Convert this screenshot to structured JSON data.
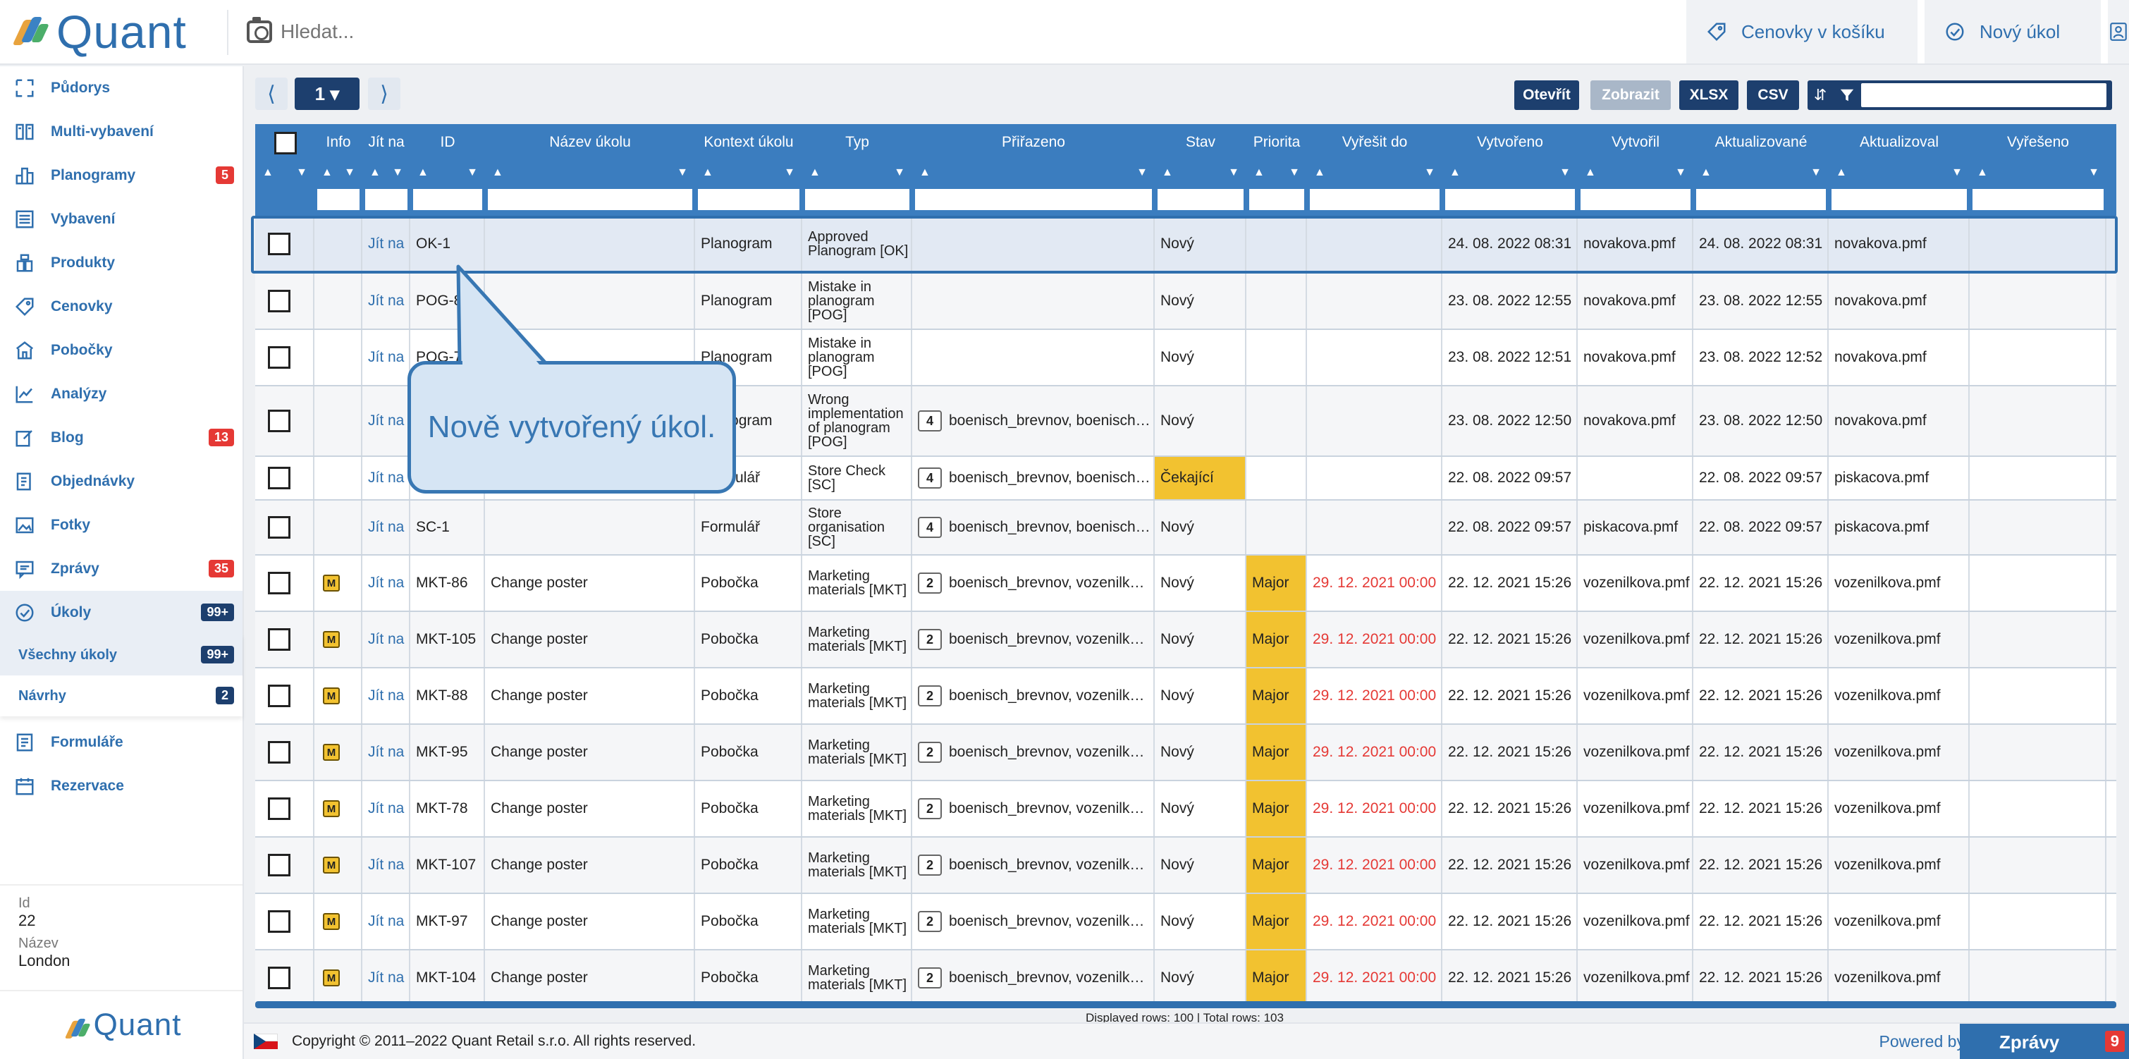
{
  "app": {
    "name": "Quant"
  },
  "search": {
    "placeholder": "Hledat..."
  },
  "topbar": {
    "cart_label": "Cenovky v košíku",
    "new_task_label": "Nový úkol"
  },
  "sidebar": {
    "items": [
      {
        "label": "Půdorys",
        "icon": "floorplan-icon"
      },
      {
        "label": "Multi-vybavení",
        "icon": "book-icon"
      },
      {
        "label": "Planogramy",
        "icon": "shelves-icon",
        "badge": "5"
      },
      {
        "label": "Vybavení",
        "icon": "fixture-icon"
      },
      {
        "label": "Produkty",
        "icon": "products-icon"
      },
      {
        "label": "Cenovky",
        "icon": "tag-icon"
      },
      {
        "label": "Pobočky",
        "icon": "store-icon"
      },
      {
        "label": "Analýzy",
        "icon": "chart-icon"
      },
      {
        "label": "Blog",
        "icon": "edit-icon",
        "badge": "13"
      },
      {
        "label": "Objednávky",
        "icon": "order-icon"
      },
      {
        "label": "Fotky",
        "icon": "photo-icon"
      },
      {
        "label": "Zprávy",
        "icon": "message-icon",
        "badge": "35"
      },
      {
        "label": "Úkoly",
        "icon": "check-icon",
        "badge": "99+"
      }
    ],
    "subitems": [
      {
        "label": "Všechny úkoly",
        "badge": "99+"
      },
      {
        "label": "Návrhy",
        "badge": "2"
      }
    ],
    "items2": [
      {
        "label": "Formuláře",
        "icon": "form-icon"
      },
      {
        "label": "Rezervace",
        "icon": "calendar-icon"
      }
    ],
    "info": {
      "id_label": "Id",
      "id_value": "22",
      "name_label": "Název",
      "name_value": "London"
    }
  },
  "toolbar": {
    "page": "1 ▾",
    "open": "Otevřít",
    "show": "Zobrazit",
    "xlsx": "XLSX",
    "csv": "CSV"
  },
  "table": {
    "headers": [
      "Info",
      "Jít na",
      "ID",
      "Název úkolu",
      "Kontext úkolu",
      "Typ",
      "Přiřazeno",
      "Stav",
      "Priorita",
      "Vyřešit do",
      "Vytvořeno",
      "Vytvořil",
      "Aktualizované",
      "Aktualizoval",
      "Vyřešeno"
    ],
    "rows": [
      {
        "info": "",
        "goto": "Jít na",
        "id": "OK-1",
        "name": "",
        "context": "Planogram",
        "type": "Approved Planogram [OK]",
        "count": "",
        "assigned": "",
        "state": "Nový",
        "priority": "",
        "due": "",
        "created": "24. 08. 2022 08:31",
        "creator": "novakova.pmf",
        "updated": "24. 08. 2022 08:31",
        "updater": "novakova.pmf",
        "resolved": ""
      },
      {
        "info": "",
        "goto": "Jít na",
        "id": "POG-8",
        "name": "",
        "context": "Planogram",
        "type": "Mistake in planogram [POG]",
        "count": "",
        "assigned": "",
        "state": "Nový",
        "priority": "",
        "due": "",
        "created": "23. 08. 2022 12:55",
        "creator": "novakova.pmf",
        "updated": "23. 08. 2022 12:55",
        "updater": "novakova.pmf",
        "resolved": ""
      },
      {
        "info": "",
        "goto": "Jít na",
        "id": "POG-7",
        "name": "",
        "context": "Planogram",
        "type": "Mistake in planogram [POG]",
        "count": "",
        "assigned": "",
        "state": "Nový",
        "priority": "",
        "due": "",
        "created": "23. 08. 2022 12:51",
        "creator": "novakova.pmf",
        "updated": "23. 08. 2022 12:52",
        "updater": "novakova.pmf",
        "resolved": ""
      },
      {
        "info": "",
        "goto": "Jít na",
        "id": "",
        "name": "",
        "context": "Planogram",
        "type": "Wrong implementation of planogram [POG]",
        "count": "4",
        "assigned": "boenisch_brevnov, boenisch…",
        "state": "Nový",
        "priority": "",
        "due": "",
        "created": "23. 08. 2022 12:50",
        "creator": "novakova.pmf",
        "updated": "23. 08. 2022 12:50",
        "updater": "novakova.pmf",
        "resolved": ""
      },
      {
        "info": "",
        "goto": "Jít na",
        "id": "",
        "name": "",
        "context": "Formulář",
        "type": "Store Check [SC]",
        "count": "4",
        "assigned": "boenisch_brevnov, boenisch…",
        "state": "Čekající",
        "priority": "",
        "due": "",
        "created": "22. 08. 2022 09:57",
        "creator": "",
        "updated": "22. 08. 2022 09:57",
        "updater": "piskacova.pmf",
        "resolved": ""
      },
      {
        "info": "",
        "goto": "Jít na",
        "id": "SC-1",
        "name": "",
        "context": "Formulář",
        "type": "Store organisation [SC]",
        "count": "4",
        "assigned": "boenisch_brevnov, boenisch…",
        "state": "Nový",
        "priority": "",
        "due": "",
        "created": "22. 08. 2022 09:57",
        "creator": "piskacova.pmf",
        "updated": "22. 08. 2022 09:57",
        "updater": "piskacova.pmf",
        "resolved": ""
      },
      {
        "info": "M",
        "goto": "Jít na",
        "id": "MKT-86",
        "name": "Change poster",
        "context": "Pobočka",
        "type": "Marketing materials [MKT]",
        "count": "2",
        "assigned": "boenisch_brevnov, vozenilk…",
        "state": "Nový",
        "priority": "Major",
        "due": "29. 12. 2021 00:00",
        "created": "22. 12. 2021 15:26",
        "creator": "vozenilkova.pmf",
        "updated": "22. 12. 2021 15:26",
        "updater": "vozenilkova.pmf",
        "resolved": ""
      },
      {
        "info": "M",
        "goto": "Jít na",
        "id": "MKT-105",
        "name": "Change poster",
        "context": "Pobočka",
        "type": "Marketing materials [MKT]",
        "count": "2",
        "assigned": "boenisch_brevnov, vozenilk…",
        "state": "Nový",
        "priority": "Major",
        "due": "29. 12. 2021 00:00",
        "created": "22. 12. 2021 15:26",
        "creator": "vozenilkova.pmf",
        "updated": "22. 12. 2021 15:26",
        "updater": "vozenilkova.pmf",
        "resolved": ""
      },
      {
        "info": "M",
        "goto": "Jít na",
        "id": "MKT-88",
        "name": "Change poster",
        "context": "Pobočka",
        "type": "Marketing materials [MKT]",
        "count": "2",
        "assigned": "boenisch_brevnov, vozenilk…",
        "state": "Nový",
        "priority": "Major",
        "due": "29. 12. 2021 00:00",
        "created": "22. 12. 2021 15:26",
        "creator": "vozenilkova.pmf",
        "updated": "22. 12. 2021 15:26",
        "updater": "vozenilkova.pmf",
        "resolved": ""
      },
      {
        "info": "M",
        "goto": "Jít na",
        "id": "MKT-95",
        "name": "Change poster",
        "context": "Pobočka",
        "type": "Marketing materials [MKT]",
        "count": "2",
        "assigned": "boenisch_brevnov, vozenilk…",
        "state": "Nový",
        "priority": "Major",
        "due": "29. 12. 2021 00:00",
        "created": "22. 12. 2021 15:26",
        "creator": "vozenilkova.pmf",
        "updated": "22. 12. 2021 15:26",
        "updater": "vozenilkova.pmf",
        "resolved": ""
      },
      {
        "info": "M",
        "goto": "Jít na",
        "id": "MKT-78",
        "name": "Change poster",
        "context": "Pobočka",
        "type": "Marketing materials [MKT]",
        "count": "2",
        "assigned": "boenisch_brevnov, vozenilk…",
        "state": "Nový",
        "priority": "Major",
        "due": "29. 12. 2021 00:00",
        "created": "22. 12. 2021 15:26",
        "creator": "vozenilkova.pmf",
        "updated": "22. 12. 2021 15:26",
        "updater": "vozenilkova.pmf",
        "resolved": ""
      },
      {
        "info": "M",
        "goto": "Jít na",
        "id": "MKT-107",
        "name": "Change poster",
        "context": "Pobočka",
        "type": "Marketing materials [MKT]",
        "count": "2",
        "assigned": "boenisch_brevnov, vozenilk…",
        "state": "Nový",
        "priority": "Major",
        "due": "29. 12. 2021 00:00",
        "created": "22. 12. 2021 15:26",
        "creator": "vozenilkova.pmf",
        "updated": "22. 12. 2021 15:26",
        "updater": "vozenilkova.pmf",
        "resolved": ""
      },
      {
        "info": "M",
        "goto": "Jít na",
        "id": "MKT-97",
        "name": "Change poster",
        "context": "Pobočka",
        "type": "Marketing materials [MKT]",
        "count": "2",
        "assigned": "boenisch_brevnov, vozenilk…",
        "state": "Nový",
        "priority": "Major",
        "due": "29. 12. 2021 00:00",
        "created": "22. 12. 2021 15:26",
        "creator": "vozenilkova.pmf",
        "updated": "22. 12. 2021 15:26",
        "updater": "vozenilkova.pmf",
        "resolved": ""
      },
      {
        "info": "M",
        "goto": "Jít na",
        "id": "MKT-104",
        "name": "Change poster",
        "context": "Pobočka",
        "type": "Marketing materials [MKT]",
        "count": "2",
        "assigned": "boenisch_brevnov, vozenilk…",
        "state": "Nový",
        "priority": "Major",
        "due": "29. 12. 2021 00:00",
        "created": "22. 12. 2021 15:26",
        "creator": "vozenilkova.pmf",
        "updated": "22. 12. 2021 15:26",
        "updater": "vozenilkova.pmf",
        "resolved": ""
      }
    ],
    "row_info": "Displayed rows: 100 | Total rows: 103"
  },
  "callout": {
    "text": "Nově vytvořený úkol."
  },
  "footer": {
    "copyright": "Copyright © 2011–2022 Quant Retail s.r.o. All rights reserved.",
    "powered": "Powered by Quant",
    "messages_label": "Zprávy",
    "messages_badge": "9"
  },
  "colors": {
    "brand": "#2f6fae",
    "header": "#3b7dbf",
    "dark": "#1d3f6e",
    "warning": "#f2c230",
    "danger": "#e53935"
  }
}
